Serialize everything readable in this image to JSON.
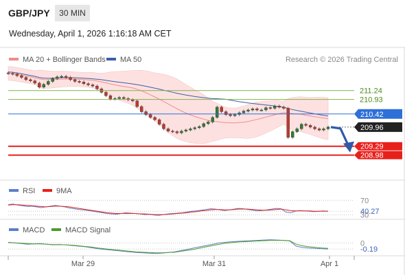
{
  "header": {
    "symbol": "GBP/JPY",
    "timeframe": "30 MIN",
    "datetime": "Wednesday, April 1, 2026 1:16:18 AM CET"
  },
  "legend": {
    "items": [
      {
        "label": "MA 20 + Bollinger Bands",
        "color": "#f28b8b"
      },
      {
        "label": "MA 50",
        "color": "#3b5ea8"
      }
    ],
    "copyright": "Research © 2026 Trading Central"
  },
  "colors": {
    "candle_up": "#2f7d2f",
    "candle_down": "#c0392b",
    "bollinger_fill": "#fde1e1",
    "ma20": "#f28b8b",
    "ma50": "#3b5ea8",
    "support_red": "#e8201b",
    "resistance_green": "#7fb24d",
    "pivot_blue": "#2e6fd9",
    "forecast_arrow": "#2f5aa8",
    "rsi_line": "#5b7fc7",
    "rsi_ma": "#e8201b",
    "macd_line": "#5b7fc7",
    "macd_signal": "#4f9a2a"
  },
  "chart_data": [
    {
      "type": "candlestick",
      "title": "GBP/JPY",
      "x_ticks": [
        "Mar 29",
        "Mar 31",
        "Apr 1"
      ],
      "ylim": [
        208.2,
        212.1
      ],
      "close_series": [
        211.84,
        211.82,
        211.76,
        211.7,
        211.62,
        211.58,
        211.5,
        211.36,
        211.46,
        211.56,
        211.66,
        211.72,
        211.74,
        211.7,
        211.62,
        211.56,
        211.54,
        211.48,
        211.44,
        211.4,
        211.3,
        211.18,
        211.06,
        210.94,
        210.96,
        211.0,
        210.96,
        210.92,
        210.88,
        210.68,
        210.5,
        210.4,
        210.3,
        210.22,
        210.06,
        209.9,
        209.82,
        209.8,
        209.76,
        209.82,
        209.86,
        209.9,
        209.94,
        209.98,
        210.08,
        210.14,
        210.3,
        210.66,
        210.5,
        210.4,
        210.36,
        210.4,
        210.46,
        210.52,
        210.56,
        210.6,
        210.56,
        210.56,
        210.64,
        210.62,
        210.7,
        210.66,
        210.62,
        209.6,
        209.8,
        209.9,
        210.06,
        210.02,
        209.96,
        209.9,
        209.86,
        209.9,
        209.96
      ],
      "ohlc_last": {
        "close": 209.96
      },
      "series": [
        {
          "name": "MA 20 + Bollinger Bands"
        },
        {
          "name": "MA 50"
        }
      ],
      "levels": [
        {
          "label": "211.24",
          "value": 211.24,
          "kind": "resistance"
        },
        {
          "label": "210.93",
          "value": 210.93,
          "kind": "resistance"
        },
        {
          "label": "210.42",
          "value": 210.42,
          "kind": "pivot"
        },
        {
          "label": "209.96",
          "value": 209.96,
          "kind": "last"
        },
        {
          "label": "209.29",
          "value": 209.29,
          "kind": "support"
        },
        {
          "label": "208.98",
          "value": 208.98,
          "kind": "support"
        }
      ],
      "forecast": {
        "from": 209.96,
        "to": 209.29
      }
    },
    {
      "type": "line",
      "title": "RSI",
      "series": [
        {
          "name": "RSI",
          "values": [
            58,
            60,
            57,
            55,
            53,
            54,
            52,
            50,
            52,
            54,
            56,
            54,
            52,
            49,
            47,
            45,
            44,
            42,
            40,
            38,
            36,
            34,
            33,
            32,
            34,
            36,
            35,
            34,
            33,
            31,
            32,
            30,
            29,
            31,
            33,
            34,
            35,
            36,
            38,
            40,
            41,
            43,
            45,
            47,
            46,
            44,
            42,
            44,
            46,
            48,
            47,
            45,
            43,
            41,
            42,
            44,
            46,
            48,
            47,
            38,
            36,
            40,
            42,
            41,
            40,
            39,
            40,
            41,
            40
          ]
        },
        {
          "name": "9MA",
          "values": [
            57,
            58,
            58,
            57,
            56,
            55,
            54,
            53,
            52,
            53,
            54,
            54,
            53,
            52,
            50,
            48,
            46,
            44,
            42,
            40,
            38,
            36,
            35,
            34,
            34,
            34,
            34,
            34,
            33,
            33,
            32,
            31,
            31,
            31,
            32,
            33,
            34,
            35,
            36,
            38,
            39,
            41,
            42,
            44,
            45,
            45,
            44,
            44,
            45,
            46,
            46,
            46,
            45,
            44,
            43,
            43,
            44,
            45,
            46,
            44,
            42,
            41,
            41,
            41,
            41,
            40,
            40,
            40,
            40
          ]
        }
      ],
      "levels": [
        {
          "label": "70",
          "value": 70
        },
        {
          "label": "40.27",
          "value": 40.27
        },
        {
          "label": "30",
          "value": 30
        }
      ],
      "ylim": [
        20,
        80
      ]
    },
    {
      "type": "line",
      "title": "MACD",
      "series": [
        {
          "name": "MACD",
          "values": [
            0.02,
            0.0,
            -0.02,
            -0.04,
            -0.03,
            -0.02,
            -0.04,
            -0.06,
            -0.05,
            -0.06,
            -0.08,
            -0.1,
            -0.12,
            -0.15,
            -0.18,
            -0.2,
            -0.22,
            -0.24,
            -0.26,
            -0.28,
            -0.3,
            -0.31,
            -0.32,
            -0.33,
            -0.32,
            -0.3,
            -0.28,
            -0.24,
            -0.2,
            -0.16,
            -0.12,
            -0.08,
            -0.04,
            0.0,
            0.02,
            0.04,
            0.05,
            0.06,
            0.07,
            0.08,
            0.09,
            0.1,
            0.09,
            0.08,
            0.06,
            -0.1,
            -0.14,
            -0.16,
            -0.17,
            -0.18,
            -0.19
          ]
        },
        {
          "name": "MACD Signal",
          "values": [
            0.01,
            0.0,
            -0.01,
            -0.02,
            -0.03,
            -0.03,
            -0.04,
            -0.05,
            -0.05,
            -0.06,
            -0.07,
            -0.09,
            -0.11,
            -0.13,
            -0.16,
            -0.18,
            -0.2,
            -0.22,
            -0.24,
            -0.26,
            -0.28,
            -0.29,
            -0.3,
            -0.31,
            -0.31,
            -0.3,
            -0.29,
            -0.26,
            -0.23,
            -0.2,
            -0.16,
            -0.12,
            -0.08,
            -0.04,
            -0.01,
            0.01,
            0.03,
            0.04,
            0.05,
            0.06,
            0.07,
            0.08,
            0.08,
            0.08,
            0.07,
            -0.04,
            -0.09,
            -0.12,
            -0.14,
            -0.16,
            -0.17
          ]
        }
      ],
      "levels": [
        {
          "label": "0",
          "value": 0
        },
        {
          "label": "-0.19",
          "value": -0.19
        }
      ],
      "ylim": [
        -0.4,
        0.2
      ]
    }
  ]
}
